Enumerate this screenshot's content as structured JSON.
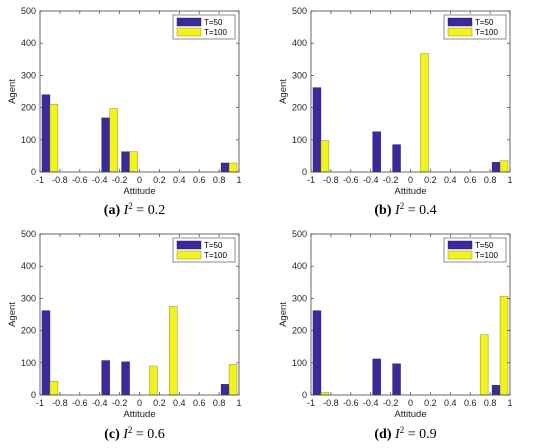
{
  "colors": {
    "series1": "#3a2b9a",
    "series2": "#f2f21f"
  },
  "chart_data": [
    {
      "type": "bar",
      "xlabel": "Attitude",
      "ylabel": "Agent",
      "xlim": [
        -1,
        1
      ],
      "ylim": [
        0,
        500
      ],
      "x_ticks": [
        "-1",
        "-0.8",
        "-0.6",
        "-0.4",
        "-0.2",
        "0",
        "0.2",
        "0.4",
        "0.6",
        "0.8",
        "1"
      ],
      "y_ticks": [
        "0",
        "100",
        "200",
        "300",
        "400",
        "500"
      ],
      "grid": false,
      "legend": "top-right",
      "x": [
        -0.9,
        -0.7,
        -0.5,
        -0.3,
        -0.1,
        0.1,
        0.3,
        0.5,
        0.7,
        0.9
      ],
      "series": [
        {
          "name": "T=50",
          "values": [
            240,
            0,
            0,
            168,
            63,
            0,
            0,
            0,
            0,
            28
          ]
        },
        {
          "name": "T=100",
          "values": [
            210,
            0,
            0,
            197,
            63,
            0,
            0,
            0,
            0,
            28
          ]
        }
      ],
      "caption": {
        "label": "(a)",
        "var": "I",
        "sup": "2",
        "rest": " = 0.2"
      }
    },
    {
      "type": "bar",
      "xlabel": "Attitude",
      "ylabel": "Agent",
      "xlim": [
        -1,
        1
      ],
      "ylim": [
        0,
        500
      ],
      "x_ticks": [
        "-1",
        "-0.8",
        "-0.6",
        "-0.4",
        "-0.2",
        "0",
        "0.2",
        "0.4",
        "0.6",
        "0.8",
        "1"
      ],
      "y_ticks": [
        "0",
        "100",
        "200",
        "300",
        "400",
        "500"
      ],
      "grid": false,
      "legend": "top-right",
      "x": [
        -0.9,
        -0.7,
        -0.5,
        -0.3,
        -0.1,
        0.1,
        0.3,
        0.5,
        0.7,
        0.9
      ],
      "series": [
        {
          "name": "T=50",
          "values": [
            262,
            0,
            0,
            125,
            85,
            0,
            0,
            0,
            0,
            30
          ]
        },
        {
          "name": "T=100",
          "values": [
            98,
            0,
            0,
            0,
            0,
            368,
            0,
            0,
            0,
            35
          ]
        }
      ],
      "caption": {
        "label": "(b)",
        "var": "I",
        "sup": "2",
        "rest": " = 0.4"
      }
    },
    {
      "type": "bar",
      "xlabel": "Attitude",
      "ylabel": "Agent",
      "xlim": [
        -1,
        1
      ],
      "ylim": [
        0,
        500
      ],
      "x_ticks": [
        "-1",
        "-0.8",
        "-0.6",
        "-0.4",
        "-0.2",
        "0",
        "0.2",
        "0.4",
        "0.6",
        "0.8",
        "1"
      ],
      "y_ticks": [
        "0",
        "100",
        "200",
        "300",
        "400",
        "500"
      ],
      "grid": false,
      "legend": "top-right",
      "x": [
        -0.9,
        -0.7,
        -0.5,
        -0.3,
        -0.1,
        0.1,
        0.3,
        0.5,
        0.7,
        0.9
      ],
      "series": [
        {
          "name": "T=50",
          "values": [
            262,
            0,
            0,
            107,
            103,
            0,
            0,
            0,
            0,
            33
          ]
        },
        {
          "name": "T=100",
          "values": [
            43,
            0,
            0,
            0,
            0,
            90,
            275,
            0,
            0,
            95
          ]
        }
      ],
      "caption": {
        "label": "(c)",
        "var": "I",
        "sup": "2",
        "rest": " = 0.6"
      }
    },
    {
      "type": "bar",
      "xlabel": "Attitude",
      "ylabel": "Agent",
      "xlim": [
        -1,
        1
      ],
      "ylim": [
        0,
        500
      ],
      "x_ticks": [
        "-1",
        "-0.8",
        "-0.6",
        "-0.4",
        "-0.2",
        "0",
        "0.2",
        "0.4",
        "0.6",
        "0.8",
        "1"
      ],
      "y_ticks": [
        "0",
        "100",
        "200",
        "300",
        "400",
        "500"
      ],
      "grid": false,
      "legend": "top-right",
      "x": [
        -0.9,
        -0.7,
        -0.5,
        -0.3,
        -0.1,
        0.1,
        0.3,
        0.5,
        0.7,
        0.9
      ],
      "series": [
        {
          "name": "T=50",
          "values": [
            262,
            0,
            0,
            112,
            97,
            0,
            0,
            0,
            0,
            30
          ]
        },
        {
          "name": "T=100",
          "values": [
            8,
            0,
            0,
            0,
            0,
            0,
            0,
            0,
            187,
            307
          ]
        }
      ],
      "caption": {
        "label": "(d)",
        "var": "I",
        "sup": "2",
        "rest": " = 0.9"
      }
    }
  ]
}
